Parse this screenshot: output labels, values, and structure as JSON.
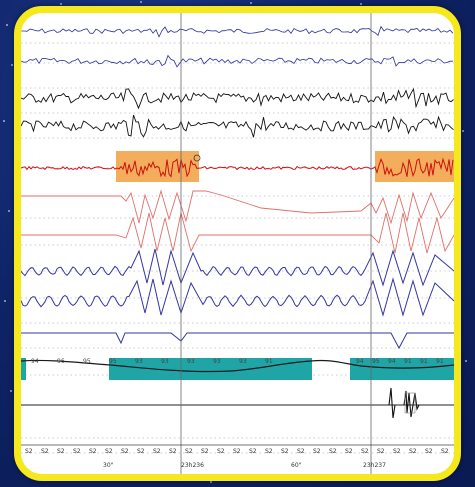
{
  "colors": {
    "background": "#0f2468",
    "frame": "#f5e81c",
    "eeg_blue": "#2a2f9c",
    "eeg_black": "#111111",
    "emg_red": "#d01010",
    "eog_pink": "#e0706a",
    "resp_blue": "#3535a5",
    "highlight_orange": "#f0a040",
    "spo2_teal": "#1fa5a5"
  },
  "spo2_labels_left": [
    "94",
    "96",
    "95",
    "95",
    "93",
    "93",
    "93",
    "93",
    "93",
    "91"
  ],
  "spo2_labels_right": [
    "94",
    "95",
    "94",
    "91",
    "91",
    "91"
  ],
  "stage_labels": [
    "S2",
    "S2",
    "S2",
    "S2",
    "S2",
    "S2",
    "S2",
    "S2",
    "S2",
    "S2",
    "S2",
    "S2",
    "S2",
    "S2",
    "S2",
    "S2",
    "S2",
    "S2",
    "S2",
    "S2",
    "S2",
    "S2",
    "S2",
    "S2",
    "S2",
    "S2",
    "S2"
  ],
  "time_axis": {
    "tick_1": "30\"",
    "marker_1": "23h236",
    "tick_2": "60\"",
    "marker_2": "23h237"
  }
}
